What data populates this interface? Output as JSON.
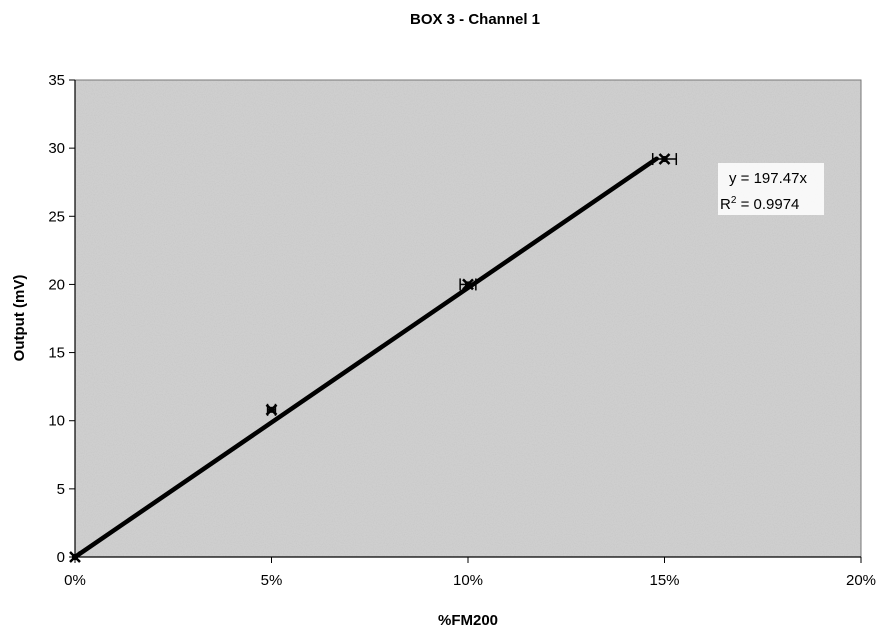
{
  "chart_data": {
    "type": "scatter",
    "title": "BOX 3 - Channel 1",
    "xlabel": "%FM200",
    "ylabel": "Output (mV)",
    "xlim": [
      0,
      0.2
    ],
    "ylim": [
      0,
      35
    ],
    "x_ticks": [
      "0%",
      "5%",
      "10%",
      "15%",
      "20%"
    ],
    "x_tick_values": [
      0,
      0.05,
      0.1,
      0.15,
      0.2
    ],
    "y_ticks": [
      "0",
      "5",
      "10",
      "15",
      "20",
      "25",
      "30",
      "35"
    ],
    "y_tick_values": [
      0,
      5,
      10,
      15,
      20,
      25,
      30,
      35
    ],
    "grid": false,
    "series": [
      {
        "points": [
          {
            "x": 0.0,
            "y": 0.0,
            "xerr": 0.0
          },
          {
            "x": 0.05,
            "y": 10.8,
            "xerr": 0.001
          },
          {
            "x": 0.1,
            "y": 20.0,
            "xerr": 0.002
          },
          {
            "x": 0.15,
            "y": 29.2,
            "xerr": 0.003
          }
        ]
      }
    ],
    "trendline": {
      "slope": 197.47,
      "intercept": 0,
      "x_end": 0.148
    },
    "annotation": {
      "equation": "y = 197.47x",
      "r2_prefix": "R",
      "r2_sup": "2",
      "r2_value": " = 0.9974"
    }
  }
}
